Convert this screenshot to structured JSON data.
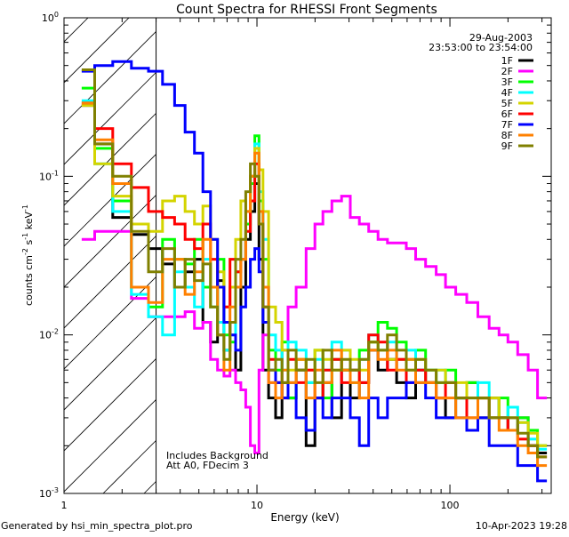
{
  "chart_data": {
    "type": "line",
    "title": "Count Spectra for RHESSI Front Segments",
    "xlabel": "Energy (keV)",
    "ylabel": {
      "base": "counts cm",
      "exp1": "-2",
      "mid": " s",
      "exp2": "-1",
      "end": " keV",
      "exp3": "-1"
    },
    "xscale": "log",
    "yscale": "log",
    "xlim": [
      1,
      335
    ],
    "ylim": [
      0.001,
      1
    ],
    "xticks": [
      {
        "value": 1,
        "label": "1"
      },
      {
        "value": 10,
        "label": "10"
      },
      {
        "value": 100,
        "label": "100"
      }
    ],
    "yticks": [
      {
        "value": 1,
        "mant": "10",
        "exp": "0"
      },
      {
        "value": 0.1,
        "mant": "10",
        "exp": "-1"
      },
      {
        "value": 0.01,
        "mant": "10",
        "exp": "-2"
      },
      {
        "value": 0.001,
        "mant": "10",
        "exp": "-3"
      }
    ],
    "hatched_region_kev": [
      1,
      3
    ],
    "date": "29-Aug-2003",
    "time_range": "23:53:00 to 23:54:00",
    "annotations": [
      "Includes Background",
      "Att A0, FDecim 3"
    ],
    "legend_placement": "top-right",
    "energy": [
      1.3,
      1.6,
      2,
      2.5,
      3,
      3.5,
      4,
      4.5,
      5,
      5.5,
      6,
      6.5,
      7,
      7.5,
      8,
      8.5,
      9,
      9.5,
      10,
      10.5,
      11,
      12,
      13,
      14,
      15,
      17,
      19,
      21,
      23,
      26,
      29,
      32,
      36,
      40,
      45,
      50,
      56,
      63,
      70,
      80,
      90,
      100,
      115,
      130,
      150,
      170,
      190,
      210,
      240,
      270,
      300
    ],
    "series": [
      {
        "name": "1F",
        "color": "#000000",
        "values": [
          0.28,
          0.16,
          0.055,
          0.043,
          0.035,
          0.028,
          0.02,
          0.025,
          0.03,
          0.012,
          0.009,
          0.022,
          0.008,
          0.012,
          0.006,
          0.02,
          0.04,
          0.06,
          0.09,
          0.03,
          0.006,
          0.004,
          0.003,
          0.005,
          0.004,
          0.006,
          0.002,
          0.004,
          0.005,
          0.003,
          0.006,
          0.004,
          0.005,
          0.008,
          0.006,
          0.007,
          0.005,
          0.004,
          0.006,
          0.005,
          0.004,
          0.003,
          0.004,
          0.005,
          0.003,
          0.004,
          0.003,
          0.0025,
          0.003,
          0.002,
          0.0018
        ]
      },
      {
        "name": "2F",
        "color": "#ff00ff",
        "values": [
          0.04,
          0.045,
          0.045,
          0.017,
          0.013,
          0.013,
          0.013,
          0.014,
          0.011,
          0.012,
          0.007,
          0.006,
          0.0055,
          0.006,
          0.005,
          0.0045,
          0.0035,
          0.002,
          0.0018,
          0.006,
          0.01,
          0.005,
          0.005,
          0.008,
          0.015,
          0.02,
          0.035,
          0.05,
          0.06,
          0.07,
          0.075,
          0.055,
          0.05,
          0.045,
          0.04,
          0.038,
          0.038,
          0.035,
          0.03,
          0.027,
          0.024,
          0.02,
          0.018,
          0.016,
          0.013,
          0.011,
          0.01,
          0.009,
          0.0075,
          0.006,
          0.004
        ]
      },
      {
        "name": "3F",
        "color": "#00ff00",
        "values": [
          0.36,
          0.15,
          0.07,
          0.02,
          0.015,
          0.04,
          0.03,
          0.028,
          0.04,
          0.02,
          0.015,
          0.03,
          0.01,
          0.009,
          0.025,
          0.03,
          0.05,
          0.09,
          0.18,
          0.07,
          0.03,
          0.008,
          0.006,
          0.009,
          0.004,
          0.007,
          0.005,
          0.008,
          0.004,
          0.007,
          0.006,
          0.005,
          0.008,
          0.009,
          0.012,
          0.011,
          0.009,
          0.007,
          0.008,
          0.006,
          0.005,
          0.006,
          0.004,
          0.005,
          0.004,
          0.003,
          0.004,
          0.003,
          0.003,
          0.0025,
          0.002
        ]
      },
      {
        "name": "4F",
        "color": "#00ffff",
        "values": [
          0.3,
          0.12,
          0.06,
          0.018,
          0.013,
          0.01,
          0.025,
          0.02,
          0.015,
          0.03,
          0.02,
          0.012,
          0.008,
          0.01,
          0.02,
          0.03,
          0.06,
          0.1,
          0.16,
          0.08,
          0.04,
          0.01,
          0.008,
          0.006,
          0.009,
          0.008,
          0.005,
          0.007,
          0.006,
          0.009,
          0.008,
          0.006,
          0.007,
          0.01,
          0.008,
          0.009,
          0.007,
          0.008,
          0.006,
          0.005,
          0.006,
          0.005,
          0.004,
          0.004,
          0.005,
          0.003,
          0.003,
          0.0035,
          0.0028,
          0.0022,
          0.0019
        ]
      },
      {
        "name": "5F",
        "color": "#d4d400",
        "values": [
          0.28,
          0.12,
          0.075,
          0.05,
          0.045,
          0.07,
          0.075,
          0.06,
          0.05,
          0.065,
          0.04,
          0.025,
          0.015,
          0.02,
          0.04,
          0.07,
          0.06,
          0.1,
          0.15,
          0.11,
          0.06,
          0.015,
          0.012,
          0.008,
          0.006,
          0.007,
          0.006,
          0.008,
          0.007,
          0.006,
          0.008,
          0.007,
          0.006,
          0.009,
          0.008,
          0.007,
          0.007,
          0.006,
          0.007,
          0.005,
          0.006,
          0.005,
          0.005,
          0.004,
          0.004,
          0.004,
          0.003,
          0.003,
          0.0028,
          0.0024,
          0.002
        ]
      },
      {
        "name": "6F",
        "color": "#ff0000",
        "values": [
          0.29,
          0.2,
          0.12,
          0.085,
          0.06,
          0.055,
          0.05,
          0.04,
          0.035,
          0.05,
          0.03,
          0.02,
          0.015,
          0.03,
          0.025,
          0.03,
          0.045,
          0.07,
          0.12,
          0.05,
          0.015,
          0.007,
          0.005,
          0.004,
          0.007,
          0.005,
          0.006,
          0.004,
          0.006,
          0.007,
          0.005,
          0.006,
          0.005,
          0.01,
          0.009,
          0.006,
          0.007,
          0.005,
          0.006,
          0.005,
          0.004,
          0.005,
          0.004,
          0.003,
          0.004,
          0.003,
          0.003,
          0.0025,
          0.0022,
          0.002,
          0.0017
        ]
      },
      {
        "name": "7F",
        "color": "#0000ff",
        "values": [
          0.46,
          0.5,
          0.53,
          0.48,
          0.46,
          0.38,
          0.28,
          0.19,
          0.14,
          0.08,
          0.04,
          0.02,
          0.012,
          0.01,
          0.008,
          0.015,
          0.02,
          0.03,
          0.035,
          0.025,
          0.012,
          0.006,
          0.005,
          0.004,
          0.005,
          0.003,
          0.0025,
          0.004,
          0.003,
          0.004,
          0.004,
          0.003,
          0.002,
          0.004,
          0.003,
          0.004,
          0.004,
          0.005,
          0.005,
          0.004,
          0.003,
          0.003,
          0.003,
          0.0025,
          0.003,
          0.002,
          0.002,
          0.002,
          0.0015,
          0.0015,
          0.0012
        ]
      },
      {
        "name": "8F",
        "color": "#ff8000",
        "values": [
          0.29,
          0.17,
          0.09,
          0.02,
          0.016,
          0.03,
          0.03,
          0.018,
          0.025,
          0.04,
          0.02,
          0.01,
          0.006,
          0.015,
          0.02,
          0.03,
          0.06,
          0.1,
          0.14,
          0.06,
          0.02,
          0.005,
          0.004,
          0.006,
          0.005,
          0.007,
          0.004,
          0.006,
          0.005,
          0.008,
          0.006,
          0.005,
          0.004,
          0.008,
          0.007,
          0.008,
          0.006,
          0.007,
          0.005,
          0.005,
          0.004,
          0.004,
          0.003,
          0.003,
          0.004,
          0.003,
          0.0025,
          0.0025,
          0.002,
          0.0018,
          0.0015
        ]
      },
      {
        "name": "9F",
        "color": "#808000",
        "values": [
          0.47,
          0.16,
          0.1,
          0.045,
          0.025,
          0.035,
          0.02,
          0.03,
          0.022,
          0.028,
          0.015,
          0.01,
          0.007,
          0.012,
          0.03,
          0.04,
          0.08,
          0.12,
          0.1,
          0.05,
          0.015,
          0.006,
          0.007,
          0.005,
          0.008,
          0.006,
          0.007,
          0.005,
          0.008,
          0.006,
          0.007,
          0.006,
          0.007,
          0.009,
          0.008,
          0.01,
          0.008,
          0.006,
          0.007,
          0.006,
          0.005,
          0.005,
          0.004,
          0.004,
          0.004,
          0.003,
          0.003,
          0.003,
          0.0024,
          0.002,
          0.0017
        ]
      }
    ]
  },
  "footer": {
    "generated_by": "Generated by hsi_min_spectra_plot.pro",
    "timestamp": "10-Apr-2023 19:28"
  }
}
